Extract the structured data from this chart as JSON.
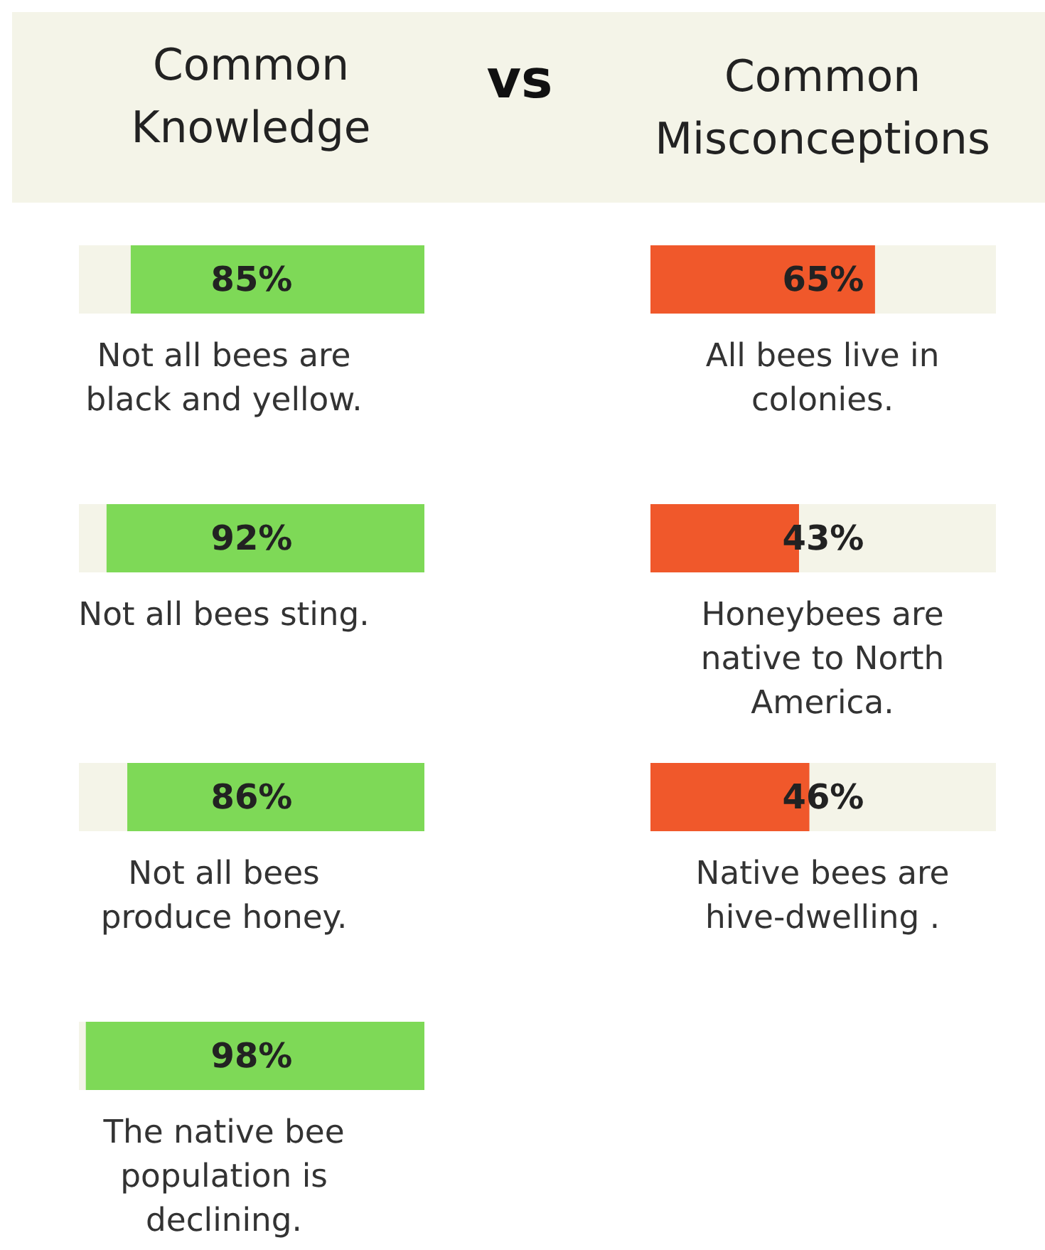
{
  "chart_data": [
    {
      "type": "bar",
      "orientation": "horizontal",
      "title": "Common Knowledge",
      "annotations": [
        "vs"
      ],
      "categories": [
        "Not all bees are black and yellow.",
        "Not all bees sting.",
        "Not all bees produce honey.",
        "The native bee population is declining."
      ],
      "values": [
        85,
        92,
        86,
        98
      ],
      "value_labels": [
        "85%",
        "92%",
        "86%",
        "98%"
      ],
      "color": "#7ed957",
      "xlim": [
        100,
        0
      ]
    },
    {
      "type": "bar",
      "orientation": "horizontal",
      "title": "Common Misconceptions",
      "categories": [
        "All bees live in colonies.",
        "Honeybees are native to North America.",
        "Native bees are hive-dwelling ."
      ],
      "values": [
        65,
        43,
        46
      ],
      "value_labels": [
        "65%",
        "43%",
        "46%"
      ],
      "color": "#f0582b",
      "xlim": [
        0,
        100
      ]
    }
  ]
}
